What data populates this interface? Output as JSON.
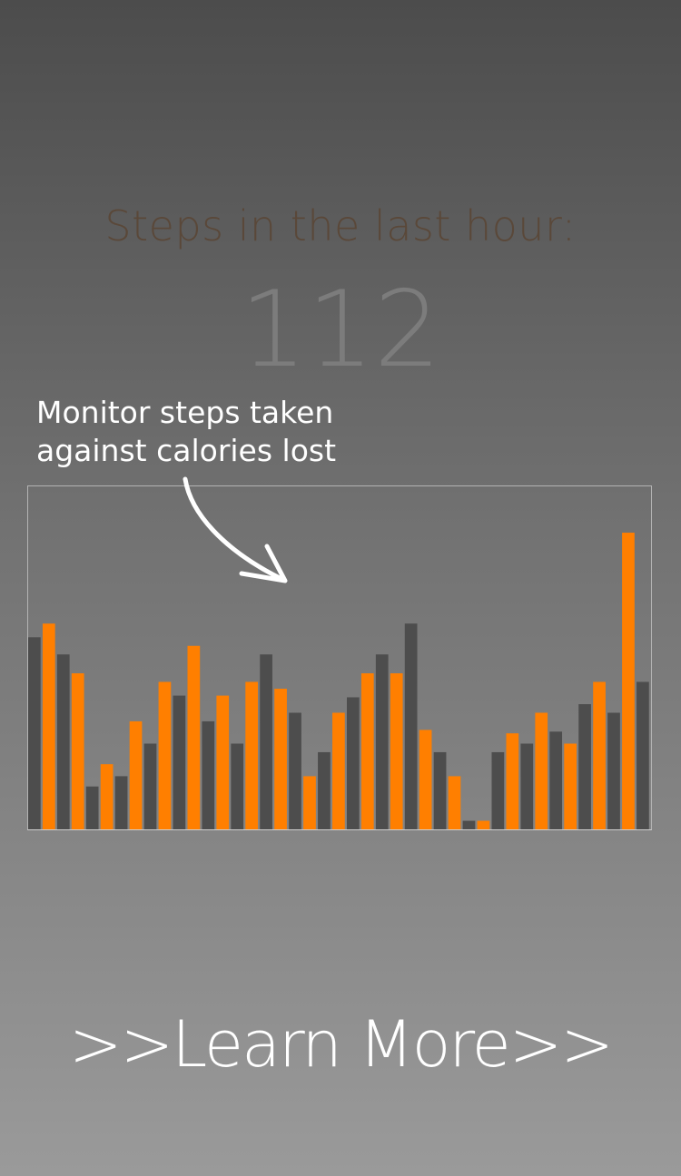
{
  "header": {
    "steps_title": "Steps in the last hour:",
    "steps_value": "112"
  },
  "callout": {
    "line1": "Monitor steps taken",
    "line2": "against calories lost"
  },
  "cta": {
    "label": ">>Learn More>>"
  },
  "colors": {
    "steps_series": "#4d4d4d",
    "calories_series": "#ff7f00"
  },
  "chart_data": {
    "type": "bar",
    "ylim": [
      0,
      100
    ],
    "series": [
      {
        "color": "#4d4d4d",
        "values": [
          56,
          51,
          12.5,
          15.5,
          25,
          39,
          31.5,
          25,
          51,
          34,
          22.5,
          38.5,
          51,
          60,
          22.5,
          2.5,
          22.5,
          25,
          28.5,
          36.5,
          34,
          43
        ]
      },
      {
        "color": "#ff7f00",
        "values": [
          60,
          45.5,
          19,
          31.5,
          43,
          53.5,
          39,
          43,
          41,
          15.5,
          34,
          45.5,
          45.5,
          29,
          15.5,
          2.5,
          28,
          34,
          25,
          43,
          86.5
        ]
      }
    ]
  }
}
